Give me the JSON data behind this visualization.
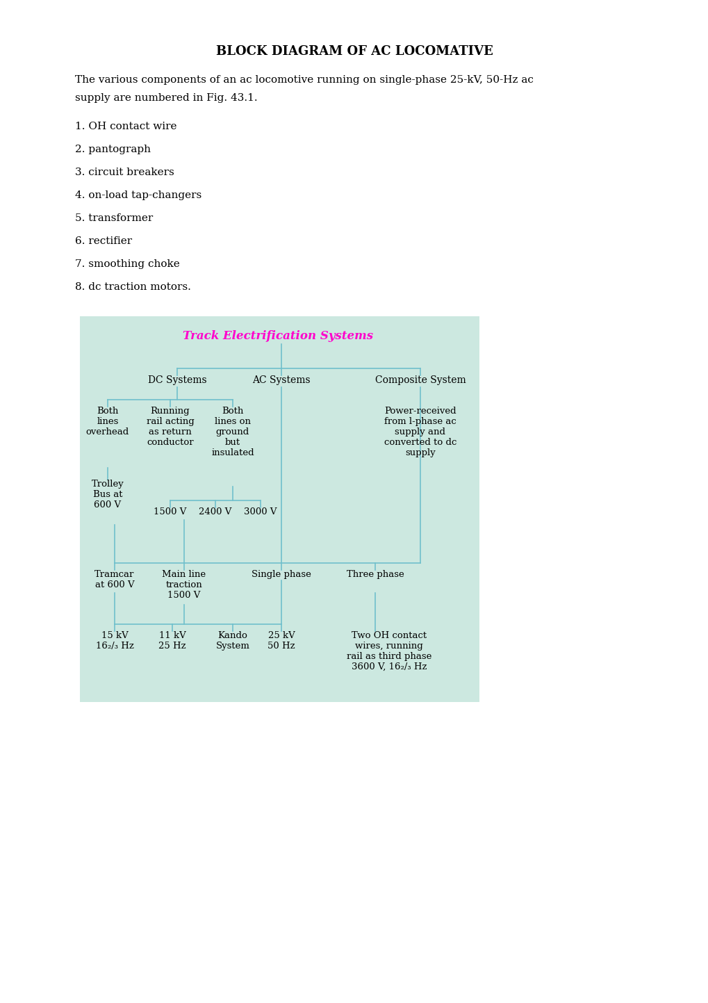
{
  "title": "BLOCK DIAGRAM OF AC LOCOMATIVE",
  "intro_text1": "The various components of an ac locomotive running on single-phase 25-kV, 50-Hz ac",
  "intro_text2": "supply are numbered in Fig. 43.1.",
  "list_items": [
    "1. OH contact wire",
    "2. pantograph",
    "3. circuit breakers",
    "4. on-load tap-changers",
    "5. transformer",
    "6. rectifier",
    "7. smoothing choke",
    "8. dc traction motors."
  ],
  "diagram_bg": "#cce8e0",
  "diagram_title": "Track Electrification Systems",
  "diagram_title_color": "#ff00cc",
  "line_color": "#70c0cc",
  "text_color": "#000000",
  "bg_color": "#ffffff"
}
